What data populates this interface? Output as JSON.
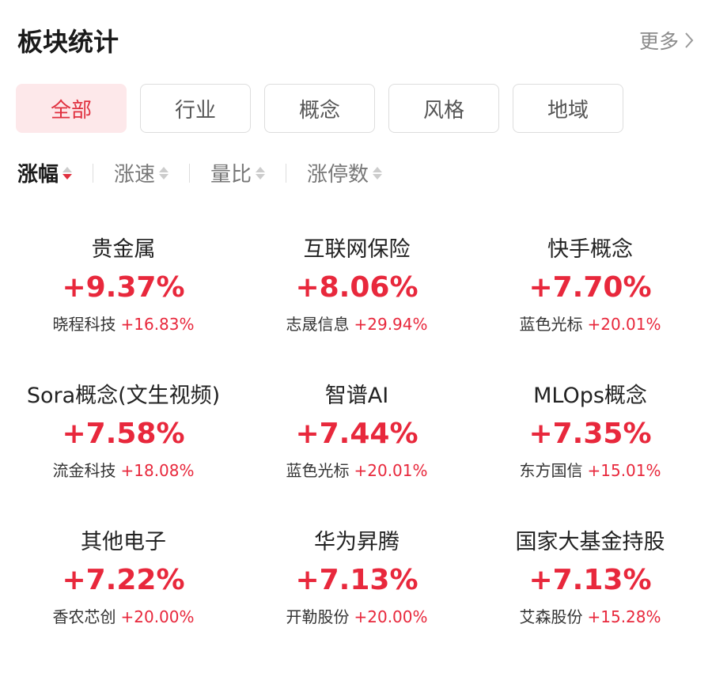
{
  "header": {
    "title": "板块统计",
    "more": "更多"
  },
  "tabs": [
    {
      "label": "全部",
      "active": true
    },
    {
      "label": "行业"
    },
    {
      "label": "概念"
    },
    {
      "label": "风格"
    },
    {
      "label": "地域"
    }
  ],
  "sorts": [
    {
      "label": "涨幅",
      "active": true,
      "direction": "desc"
    },
    {
      "label": "涨速"
    },
    {
      "label": "量比"
    },
    {
      "label": "涨停数"
    }
  ],
  "colors": {
    "up": "#e8283c",
    "active_tab_bg": "#fde8ea"
  },
  "sectors": [
    {
      "name": "贵金属",
      "change": "+9.37%",
      "leader": "晓程科技",
      "leader_change": "+16.83%"
    },
    {
      "name": "互联网保险",
      "change": "+8.06%",
      "leader": "志晟信息",
      "leader_change": "+29.94%"
    },
    {
      "name": "快手概念",
      "change": "+7.70%",
      "leader": "蓝色光标",
      "leader_change": "+20.01%"
    },
    {
      "name": "Sora概念(文生视频)",
      "change": "+7.58%",
      "leader": "流金科技",
      "leader_change": "+18.08%"
    },
    {
      "name": "智谱AI",
      "change": "+7.44%",
      "leader": "蓝色光标",
      "leader_change": "+20.01%"
    },
    {
      "name": "MLOps概念",
      "change": "+7.35%",
      "leader": "东方国信",
      "leader_change": "+15.01%"
    },
    {
      "name": "其他电子",
      "change": "+7.22%",
      "leader": "香农芯创",
      "leader_change": "+20.00%"
    },
    {
      "name": "华为昇腾",
      "change": "+7.13%",
      "leader": "开勒股份",
      "leader_change": "+20.00%"
    },
    {
      "name": "国家大基金持股",
      "change": "+7.13%",
      "leader": "艾森股份",
      "leader_change": "+15.28%"
    }
  ]
}
